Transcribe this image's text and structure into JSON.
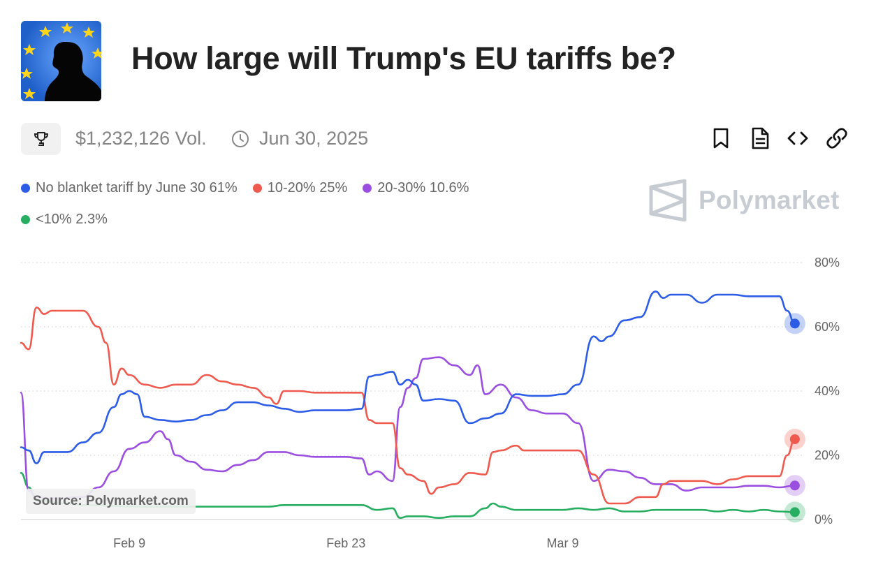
{
  "header": {
    "title": "How large will Trump's EU tariffs be?",
    "thumbnail_icon": "eu-flag-silhouette-image"
  },
  "meta": {
    "volume": "$1,232,126 Vol.",
    "end_date": "Jun 30, 2025",
    "trophy_icon": "trophy-icon",
    "clock_icon": "clock-icon"
  },
  "actions": [
    {
      "name": "bookmark-button",
      "icon": "bookmark-icon"
    },
    {
      "name": "document-button",
      "icon": "document-icon"
    },
    {
      "name": "embed-button",
      "icon": "code-icon"
    },
    {
      "name": "link-button",
      "icon": "link-icon"
    }
  ],
  "legend": {
    "items": [
      {
        "label": "No blanket tariff by June 30 61%",
        "color": "#2d5ce6"
      },
      {
        "label": "10-20% 25%",
        "color": "#ef5a4f"
      },
      {
        "label": "20-30% 10.6%",
        "color": "#9b4fe0"
      },
      {
        "label": "<10% 2.3%",
        "color": "#27ae60"
      }
    ]
  },
  "watermark": "Polymarket",
  "source": "Source: Polymarket.com",
  "chart_data": {
    "type": "line",
    "x_start": "2025-02-02",
    "x_end": "2025-03-25",
    "x_ticks": [
      {
        "date": "2025-02-09",
        "label": "Feb 9"
      },
      {
        "date": "2025-02-23",
        "label": "Feb 23"
      },
      {
        "date": "2025-03-09",
        "label": "Mar 9"
      }
    ],
    "y_ticks": [
      {
        "value": 0,
        "label": "0%"
      },
      {
        "value": 20,
        "label": "20%"
      },
      {
        "value": 40,
        "label": "40%"
      },
      {
        "value": 60,
        "label": "60%"
      },
      {
        "value": 80,
        "label": "80%"
      }
    ],
    "ylim": [
      0,
      80
    ],
    "grid": true,
    "series": [
      {
        "name": "No blanket tariff by June 30",
        "color": "#2d5ce6",
        "points": [
          [
            "2025-02-02",
            22.5
          ],
          [
            "2025-02-02T12",
            21.5
          ],
          [
            "2025-02-03",
            17.5
          ],
          [
            "2025-02-03T12",
            21
          ],
          [
            "2025-02-05",
            21
          ],
          [
            "2025-02-06",
            24
          ],
          [
            "2025-02-07",
            27
          ],
          [
            "2025-02-08",
            35
          ],
          [
            "2025-02-08T12",
            39
          ],
          [
            "2025-02-09",
            40
          ],
          [
            "2025-02-09T12",
            39
          ],
          [
            "2025-02-10",
            32
          ],
          [
            "2025-02-11",
            31
          ],
          [
            "2025-02-12",
            30.5
          ],
          [
            "2025-02-13",
            31
          ],
          [
            "2025-02-14",
            32.5
          ],
          [
            "2025-02-15",
            34
          ],
          [
            "2025-02-16",
            36.5
          ],
          [
            "2025-02-17",
            36.5
          ],
          [
            "2025-02-18",
            35.5
          ],
          [
            "2025-02-19",
            34.5
          ],
          [
            "2025-02-20",
            33.5
          ],
          [
            "2025-02-21",
            34
          ],
          [
            "2025-02-22",
            34
          ],
          [
            "2025-02-23",
            34
          ],
          [
            "2025-02-24",
            34.5
          ],
          [
            "2025-02-24T12",
            44.5
          ],
          [
            "2025-02-25",
            45
          ],
          [
            "2025-02-26",
            46
          ],
          [
            "2025-02-26T12",
            42
          ],
          [
            "2025-02-27",
            43.5
          ],
          [
            "2025-02-27T12",
            42
          ],
          [
            "2025-02-28",
            37
          ],
          [
            "2025-03-01",
            37.5
          ],
          [
            "2025-03-02",
            37
          ],
          [
            "2025-03-03",
            30
          ],
          [
            "2025-03-04",
            31.5
          ],
          [
            "2025-03-05",
            33
          ],
          [
            "2025-03-06",
            39
          ],
          [
            "2025-03-07",
            38.5
          ],
          [
            "2025-03-08",
            38.5
          ],
          [
            "2025-03-09",
            39
          ],
          [
            "2025-03-10",
            42
          ],
          [
            "2025-03-11",
            57
          ],
          [
            "2025-03-11T12",
            55.5
          ],
          [
            "2025-03-12",
            57
          ],
          [
            "2025-03-13",
            62
          ],
          [
            "2025-03-14",
            63
          ],
          [
            "2025-03-15",
            71
          ],
          [
            "2025-03-15T12",
            69
          ],
          [
            "2025-03-16",
            70
          ],
          [
            "2025-03-17",
            70
          ],
          [
            "2025-03-18",
            67.5
          ],
          [
            "2025-03-19",
            70
          ],
          [
            "2025-03-20",
            70
          ],
          [
            "2025-03-21",
            69.5
          ],
          [
            "2025-03-22",
            69.5
          ],
          [
            "2025-03-23",
            69.5
          ],
          [
            "2025-03-23T12",
            65
          ],
          [
            "2025-03-24",
            61
          ]
        ]
      },
      {
        "name": "10-20%",
        "color": "#ef5a4f",
        "points": [
          [
            "2025-02-02",
            55
          ],
          [
            "2025-02-02T12",
            53
          ],
          [
            "2025-02-03",
            66
          ],
          [
            "2025-02-03T12",
            64
          ],
          [
            "2025-02-04",
            65
          ],
          [
            "2025-02-06",
            65
          ],
          [
            "2025-02-07",
            60
          ],
          [
            "2025-02-07T12",
            55
          ],
          [
            "2025-02-08",
            42
          ],
          [
            "2025-02-08T12",
            47
          ],
          [
            "2025-02-09",
            45
          ],
          [
            "2025-02-10",
            42
          ],
          [
            "2025-02-11",
            41
          ],
          [
            "2025-02-12",
            42
          ],
          [
            "2025-02-13",
            42
          ],
          [
            "2025-02-14",
            45
          ],
          [
            "2025-02-15",
            43
          ],
          [
            "2025-02-16",
            42
          ],
          [
            "2025-02-17",
            41
          ],
          [
            "2025-02-18",
            38
          ],
          [
            "2025-02-18T12",
            36
          ],
          [
            "2025-02-19",
            40
          ],
          [
            "2025-02-20",
            40
          ],
          [
            "2025-02-21",
            39.5
          ],
          [
            "2025-02-22",
            39.5
          ],
          [
            "2025-02-23",
            39.5
          ],
          [
            "2025-02-24",
            39.5
          ],
          [
            "2025-02-24T12",
            31
          ],
          [
            "2025-02-25",
            30
          ],
          [
            "2025-02-26",
            30
          ],
          [
            "2025-02-26T12",
            16
          ],
          [
            "2025-02-27",
            14
          ],
          [
            "2025-02-28",
            12
          ],
          [
            "2025-02-28T12",
            8
          ],
          [
            "2025-03-01",
            10
          ],
          [
            "2025-03-02",
            11
          ],
          [
            "2025-03-03",
            14.5
          ],
          [
            "2025-03-04",
            14
          ],
          [
            "2025-03-04T12",
            21
          ],
          [
            "2025-03-05",
            21.5
          ],
          [
            "2025-03-06",
            23
          ],
          [
            "2025-03-06T12",
            21.5
          ],
          [
            "2025-03-07",
            21.5
          ],
          [
            "2025-03-10",
            21.5
          ],
          [
            "2025-03-11",
            14
          ],
          [
            "2025-03-12",
            5
          ],
          [
            "2025-03-13",
            5
          ],
          [
            "2025-03-14",
            7
          ],
          [
            "2025-03-15",
            7
          ],
          [
            "2025-03-15T12",
            11
          ],
          [
            "2025-03-16",
            12
          ],
          [
            "2025-03-18",
            12
          ],
          [
            "2025-03-19",
            11
          ],
          [
            "2025-03-20",
            12.5
          ],
          [
            "2025-03-21",
            13.5
          ],
          [
            "2025-03-22",
            13.5
          ],
          [
            "2025-03-23",
            13.5
          ],
          [
            "2025-03-23T12",
            20
          ],
          [
            "2025-03-24",
            25
          ]
        ]
      },
      {
        "name": "20-30%",
        "color": "#9b4fe0",
        "points": [
          [
            "2025-02-02",
            39.5
          ],
          [
            "2025-02-02T12",
            9
          ],
          [
            "2025-02-03",
            7
          ],
          [
            "2025-02-04",
            6.5
          ],
          [
            "2025-02-06",
            7
          ],
          [
            "2025-02-07",
            10
          ],
          [
            "2025-02-08",
            15
          ],
          [
            "2025-02-09",
            22
          ],
          [
            "2025-02-10",
            24
          ],
          [
            "2025-02-11",
            27.5
          ],
          [
            "2025-02-11T12",
            25
          ],
          [
            "2025-02-12",
            20
          ],
          [
            "2025-02-13",
            18
          ],
          [
            "2025-02-14",
            15.5
          ],
          [
            "2025-02-15",
            15
          ],
          [
            "2025-02-16",
            17
          ],
          [
            "2025-02-17",
            18.5
          ],
          [
            "2025-02-18",
            21
          ],
          [
            "2025-02-19",
            21
          ],
          [
            "2025-02-20",
            20
          ],
          [
            "2025-02-21",
            19.5
          ],
          [
            "2025-02-22",
            19.5
          ],
          [
            "2025-02-23",
            19.5
          ],
          [
            "2025-02-24",
            19
          ],
          [
            "2025-02-24T12",
            14
          ],
          [
            "2025-02-25",
            15
          ],
          [
            "2025-02-26",
            12
          ],
          [
            "2025-02-26T12",
            35
          ],
          [
            "2025-02-27",
            41
          ],
          [
            "2025-02-27T12",
            44
          ],
          [
            "2025-02-28",
            50
          ],
          [
            "2025-03-01",
            50.5
          ],
          [
            "2025-03-02",
            48
          ],
          [
            "2025-03-03",
            45
          ],
          [
            "2025-03-03T12",
            48
          ],
          [
            "2025-03-04",
            39
          ],
          [
            "2025-03-05",
            42
          ],
          [
            "2025-03-06",
            38
          ],
          [
            "2025-03-07",
            34
          ],
          [
            "2025-03-08",
            33
          ],
          [
            "2025-03-09",
            33
          ],
          [
            "2025-03-10",
            30
          ],
          [
            "2025-03-11",
            12
          ],
          [
            "2025-03-12",
            15.5
          ],
          [
            "2025-03-13",
            15
          ],
          [
            "2025-03-14",
            13
          ],
          [
            "2025-03-15",
            11
          ],
          [
            "2025-03-16",
            11
          ],
          [
            "2025-03-17",
            9
          ],
          [
            "2025-03-18",
            10
          ],
          [
            "2025-03-19",
            10
          ],
          [
            "2025-03-20",
            10
          ],
          [
            "2025-03-21",
            10.5
          ],
          [
            "2025-03-22",
            10.5
          ],
          [
            "2025-03-23",
            10
          ],
          [
            "2025-03-24",
            10.6
          ]
        ]
      },
      {
        "name": "<10%",
        "color": "#27ae60",
        "points": [
          [
            "2025-02-02",
            14.5
          ],
          [
            "2025-02-02T12",
            10
          ],
          [
            "2025-02-03",
            6
          ],
          [
            "2025-02-05",
            5
          ],
          [
            "2025-02-06",
            4.5
          ],
          [
            "2025-02-10",
            4
          ],
          [
            "2025-02-14",
            4
          ],
          [
            "2025-02-15",
            4
          ],
          [
            "2025-02-18",
            4
          ],
          [
            "2025-02-19",
            4.5
          ],
          [
            "2025-02-20",
            4.5
          ],
          [
            "2025-02-23",
            4.5
          ],
          [
            "2025-02-24",
            4.5
          ],
          [
            "2025-02-25",
            3
          ],
          [
            "2025-02-26",
            3.5
          ],
          [
            "2025-02-26T12",
            0.5
          ],
          [
            "2025-02-27",
            1
          ],
          [
            "2025-02-28",
            1
          ],
          [
            "2025-03-01",
            0.5
          ],
          [
            "2025-03-02",
            1
          ],
          [
            "2025-03-03",
            1
          ],
          [
            "2025-03-04",
            3.5
          ],
          [
            "2025-03-04T12",
            5
          ],
          [
            "2025-03-05",
            4
          ],
          [
            "2025-03-06",
            3
          ],
          [
            "2025-03-07",
            3
          ],
          [
            "2025-03-09",
            3
          ],
          [
            "2025-03-10",
            3.5
          ],
          [
            "2025-03-11",
            3
          ],
          [
            "2025-03-12",
            3.5
          ],
          [
            "2025-03-13",
            2.5
          ],
          [
            "2025-03-14",
            2.5
          ],
          [
            "2025-03-15",
            3
          ],
          [
            "2025-03-16",
            3
          ],
          [
            "2025-03-18",
            3
          ],
          [
            "2025-03-19",
            2.5
          ],
          [
            "2025-03-20",
            3
          ],
          [
            "2025-03-21",
            2.5
          ],
          [
            "2025-03-22",
            3
          ],
          [
            "2025-03-23",
            2.5
          ],
          [
            "2025-03-24",
            2.3
          ]
        ]
      }
    ]
  }
}
